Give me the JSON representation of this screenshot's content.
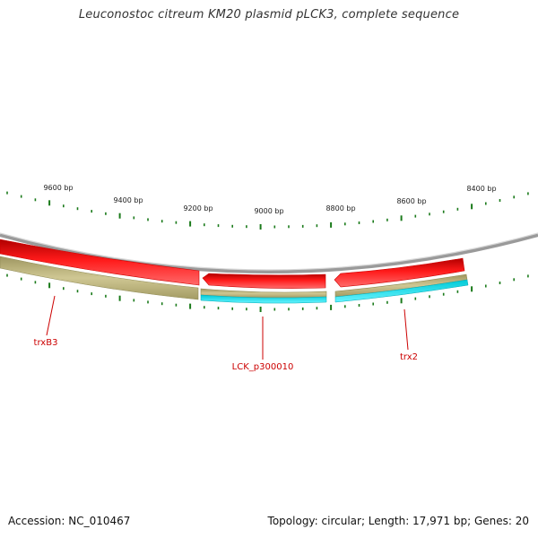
{
  "title": "Leuconostoc citreum KM20 plasmid pLCK3, complete sequence",
  "footer": {
    "accession": "Accession: NC_010467",
    "summary": "Topology: circular; Length: 17,971 bp; Genes: 20"
  },
  "scale_ticks": [
    {
      "label": "9600 bp"
    },
    {
      "label": "9400 bp"
    },
    {
      "label": "9200 bp"
    },
    {
      "label": "9000 bp"
    },
    {
      "label": "8800 bp"
    },
    {
      "label": "8600 bp"
    },
    {
      "label": "8400 bp"
    }
  ],
  "genes": [
    {
      "label": "trxB3"
    },
    {
      "label": "LCK_p300010"
    },
    {
      "label": "trx2"
    }
  ],
  "colors": {
    "backbone": "#8a8a8a",
    "gene_fill": "#ff0000",
    "gene_edge": "#cc0000",
    "cds_fill": "#c8c08a",
    "cds_edge": "#8f8a55",
    "highlight": "#00e5ee",
    "tick": "#1a7a1a",
    "label": "#cc0000"
  }
}
